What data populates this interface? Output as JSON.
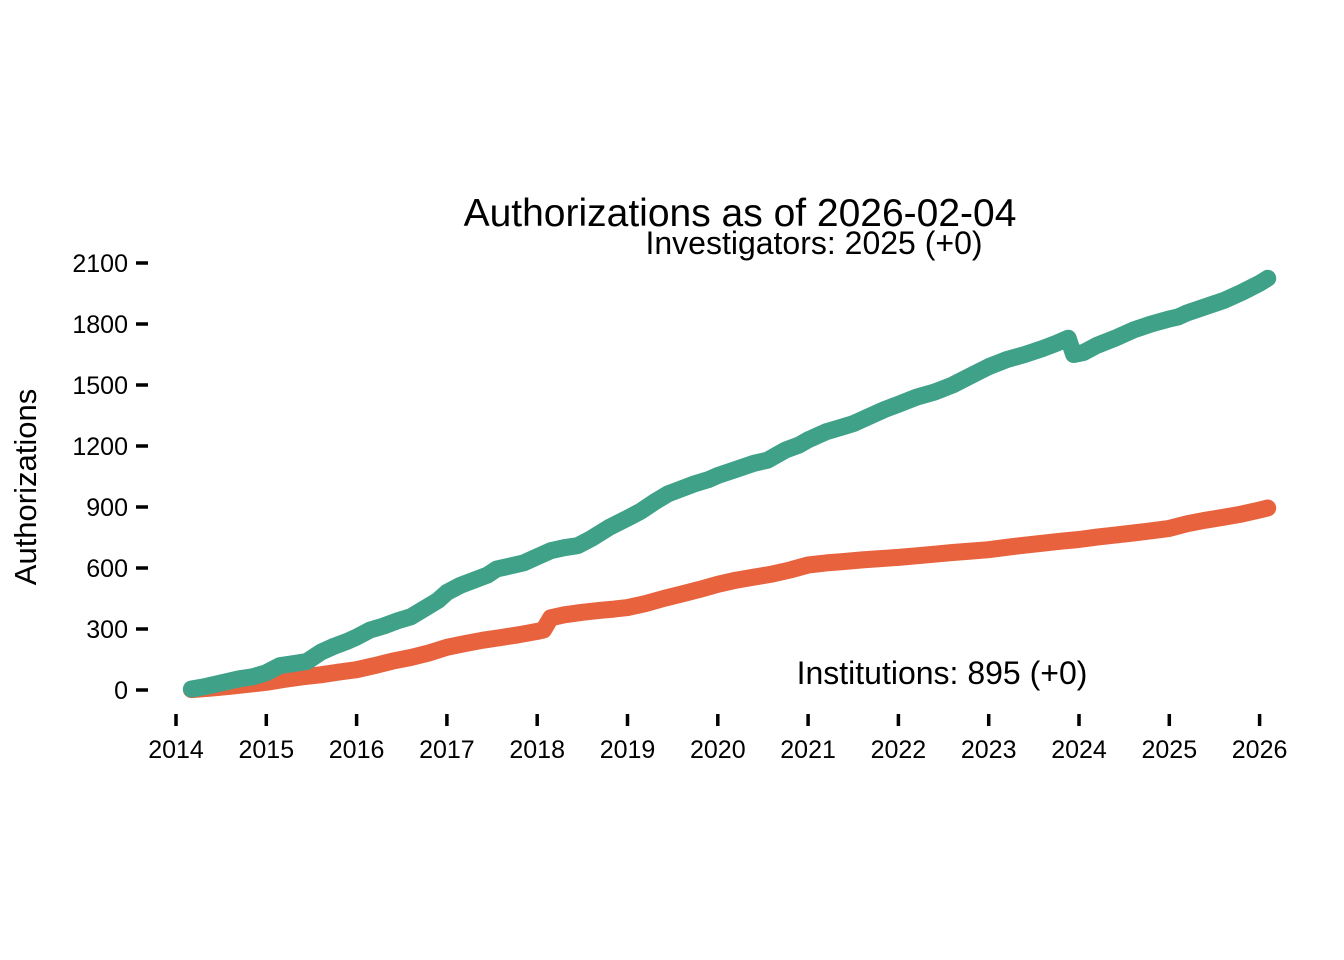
{
  "chart_data": {
    "type": "line",
    "title": "Authorizations as of 2026-02-04",
    "as_of_date": "2026-02-04",
    "xlabel": "",
    "ylabel": "Authorizations",
    "x_ticks": [
      2014,
      2015,
      2016,
      2017,
      2018,
      2019,
      2020,
      2021,
      2022,
      2023,
      2024,
      2025,
      2026
    ],
    "y_ticks": [
      0,
      300,
      600,
      900,
      1200,
      1500,
      1800,
      2100
    ],
    "xlim": [
      2013.6,
      2026.8
    ],
    "ylim": [
      0,
      2100
    ],
    "grid": false,
    "legend": "none-inline-labels",
    "series": [
      {
        "name": "Institutions",
        "label": "Institutions: 895 (+0)",
        "final_value": 895,
        "delta": "+0",
        "color": "#E8623E",
        "points": [
          [
            2014.17,
            2
          ],
          [
            2014.4,
            10
          ],
          [
            2014.6,
            18
          ],
          [
            2014.8,
            28
          ],
          [
            2015.0,
            38
          ],
          [
            2015.2,
            52
          ],
          [
            2015.4,
            65
          ],
          [
            2015.6,
            75
          ],
          [
            2015.8,
            88
          ],
          [
            2016.0,
            100
          ],
          [
            2016.2,
            120
          ],
          [
            2016.4,
            142
          ],
          [
            2016.6,
            160
          ],
          [
            2016.8,
            182
          ],
          [
            2017.0,
            210
          ],
          [
            2017.2,
            228
          ],
          [
            2017.4,
            245
          ],
          [
            2017.6,
            258
          ],
          [
            2017.8,
            272
          ],
          [
            2018.0,
            288
          ],
          [
            2018.07,
            295
          ],
          [
            2018.15,
            355
          ],
          [
            2018.3,
            370
          ],
          [
            2018.5,
            382
          ],
          [
            2018.7,
            392
          ],
          [
            2018.85,
            398
          ],
          [
            2019.0,
            405
          ],
          [
            2019.2,
            425
          ],
          [
            2019.4,
            450
          ],
          [
            2019.6,
            472
          ],
          [
            2019.8,
            495
          ],
          [
            2020.0,
            520
          ],
          [
            2020.2,
            540
          ],
          [
            2020.4,
            555
          ],
          [
            2020.6,
            570
          ],
          [
            2020.8,
            590
          ],
          [
            2021.0,
            615
          ],
          [
            2021.2,
            625
          ],
          [
            2021.4,
            632
          ],
          [
            2021.6,
            640
          ],
          [
            2021.8,
            646
          ],
          [
            2022.0,
            652
          ],
          [
            2022.2,
            660
          ],
          [
            2022.4,
            668
          ],
          [
            2022.6,
            676
          ],
          [
            2022.8,
            683
          ],
          [
            2023.0,
            690
          ],
          [
            2023.2,
            702
          ],
          [
            2023.4,
            712
          ],
          [
            2023.6,
            722
          ],
          [
            2023.8,
            732
          ],
          [
            2024.0,
            740
          ],
          [
            2024.2,
            752
          ],
          [
            2024.4,
            762
          ],
          [
            2024.6,
            772
          ],
          [
            2024.8,
            783
          ],
          [
            2025.0,
            795
          ],
          [
            2025.2,
            818
          ],
          [
            2025.4,
            835
          ],
          [
            2025.6,
            850
          ],
          [
            2025.8,
            865
          ],
          [
            2026.0,
            885
          ],
          [
            2026.09,
            895
          ]
        ]
      },
      {
        "name": "Investigators",
        "label": "Investigators: 2025 (+0)",
        "final_value": 2025,
        "delta": "+0",
        "color": "#3FA188",
        "points": [
          [
            2014.17,
            5
          ],
          [
            2014.3,
            15
          ],
          [
            2014.5,
            35
          ],
          [
            2014.7,
            55
          ],
          [
            2014.85,
            65
          ],
          [
            2015.0,
            85
          ],
          [
            2015.15,
            120
          ],
          [
            2015.3,
            130
          ],
          [
            2015.45,
            140
          ],
          [
            2015.6,
            185
          ],
          [
            2015.75,
            215
          ],
          [
            2015.9,
            240
          ],
          [
            2016.0,
            260
          ],
          [
            2016.15,
            295
          ],
          [
            2016.3,
            315
          ],
          [
            2016.45,
            340
          ],
          [
            2016.6,
            360
          ],
          [
            2016.75,
            400
          ],
          [
            2016.9,
            440
          ],
          [
            2017.0,
            480
          ],
          [
            2017.15,
            515
          ],
          [
            2017.3,
            540
          ],
          [
            2017.45,
            565
          ],
          [
            2017.55,
            595
          ],
          [
            2017.7,
            610
          ],
          [
            2017.85,
            625
          ],
          [
            2018.0,
            655
          ],
          [
            2018.15,
            685
          ],
          [
            2018.3,
            700
          ],
          [
            2018.45,
            710
          ],
          [
            2018.6,
            745
          ],
          [
            2018.8,
            800
          ],
          [
            2019.0,
            845
          ],
          [
            2019.15,
            880
          ],
          [
            2019.3,
            925
          ],
          [
            2019.45,
            965
          ],
          [
            2019.6,
            990
          ],
          [
            2019.75,
            1015
          ],
          [
            2019.9,
            1035
          ],
          [
            2020.0,
            1055
          ],
          [
            2020.2,
            1085
          ],
          [
            2020.4,
            1115
          ],
          [
            2020.55,
            1130
          ],
          [
            2020.75,
            1180
          ],
          [
            2020.9,
            1205
          ],
          [
            2021.0,
            1230
          ],
          [
            2021.2,
            1270
          ],
          [
            2021.35,
            1290
          ],
          [
            2021.5,
            1310
          ],
          [
            2021.7,
            1350
          ],
          [
            2021.85,
            1380
          ],
          [
            2022.0,
            1405
          ],
          [
            2022.2,
            1440
          ],
          [
            2022.4,
            1465
          ],
          [
            2022.6,
            1500
          ],
          [
            2022.8,
            1545
          ],
          [
            2023.0,
            1590
          ],
          [
            2023.2,
            1625
          ],
          [
            2023.4,
            1650
          ],
          [
            2023.6,
            1680
          ],
          [
            2023.75,
            1705
          ],
          [
            2023.88,
            1730
          ],
          [
            2023.94,
            1650
          ],
          [
            2024.05,
            1660
          ],
          [
            2024.2,
            1695
          ],
          [
            2024.4,
            1730
          ],
          [
            2024.6,
            1770
          ],
          [
            2024.8,
            1800
          ],
          [
            2025.0,
            1825
          ],
          [
            2025.1,
            1835
          ],
          [
            2025.2,
            1855
          ],
          [
            2025.4,
            1885
          ],
          [
            2025.6,
            1915
          ],
          [
            2025.8,
            1955
          ],
          [
            2026.0,
            2000
          ],
          [
            2026.09,
            2025
          ]
        ]
      }
    ]
  }
}
